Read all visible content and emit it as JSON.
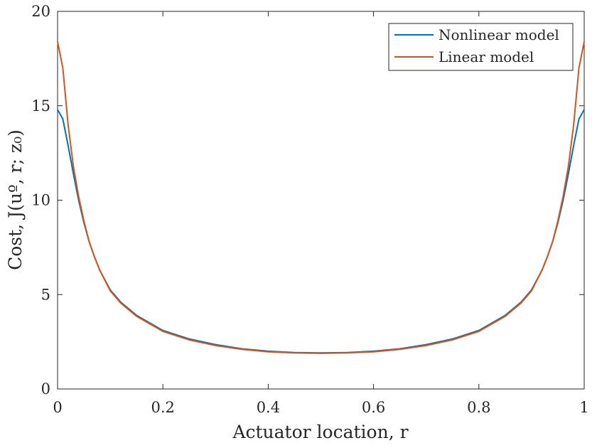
{
  "chart_data": {
    "type": "line",
    "title": "",
    "xlabel": "Actuator location, r",
    "ylabel": "Cost, J(uº, r; z₀)",
    "xlim": [
      0,
      1
    ],
    "ylim": [
      0,
      20
    ],
    "x_ticks": [
      "0",
      "0.2",
      "0.4",
      "0.6",
      "0.8",
      "1"
    ],
    "y_ticks": [
      "0",
      "5",
      "10",
      "15",
      "20"
    ],
    "grid": false,
    "legend_position": "top-right",
    "colors": {
      "nonlinear": "#0072BD",
      "linear": "#D95319"
    },
    "x": [
      0,
      0.01,
      0.02,
      0.03,
      0.04,
      0.05,
      0.06,
      0.07,
      0.08,
      0.1,
      0.12,
      0.15,
      0.2,
      0.25,
      0.3,
      0.35,
      0.4,
      0.45,
      0.5,
      0.55,
      0.6,
      0.65,
      0.7,
      0.75,
      0.8,
      0.85,
      0.88,
      0.9,
      0.92,
      0.93,
      0.94,
      0.95,
      0.96,
      0.97,
      0.98,
      0.99,
      1
    ],
    "series": [
      {
        "name": "Nonlinear model",
        "values": [
          14.8,
          14.3,
          12.9,
          11.4,
          10.0,
          8.8,
          7.8,
          7.0,
          6.3,
          5.25,
          4.6,
          3.9,
          3.1,
          2.65,
          2.35,
          2.13,
          2.0,
          1.93,
          1.91,
          1.93,
          2.0,
          2.13,
          2.35,
          2.65,
          3.1,
          3.9,
          4.6,
          5.25,
          6.3,
          7.0,
          7.8,
          8.8,
          10.0,
          11.4,
          12.9,
          14.3,
          14.8
        ]
      },
      {
        "name": "Linear model",
        "values": [
          18.4,
          17.0,
          14.0,
          11.8,
          10.2,
          8.9,
          7.8,
          7.0,
          6.3,
          5.2,
          4.55,
          3.85,
          3.05,
          2.6,
          2.3,
          2.1,
          1.97,
          1.91,
          1.89,
          1.91,
          1.97,
          2.1,
          2.3,
          2.6,
          3.05,
          3.85,
          4.55,
          5.2,
          6.3,
          7.0,
          7.8,
          8.9,
          10.2,
          11.8,
          14.0,
          17.0,
          18.4
        ]
      }
    ]
  }
}
